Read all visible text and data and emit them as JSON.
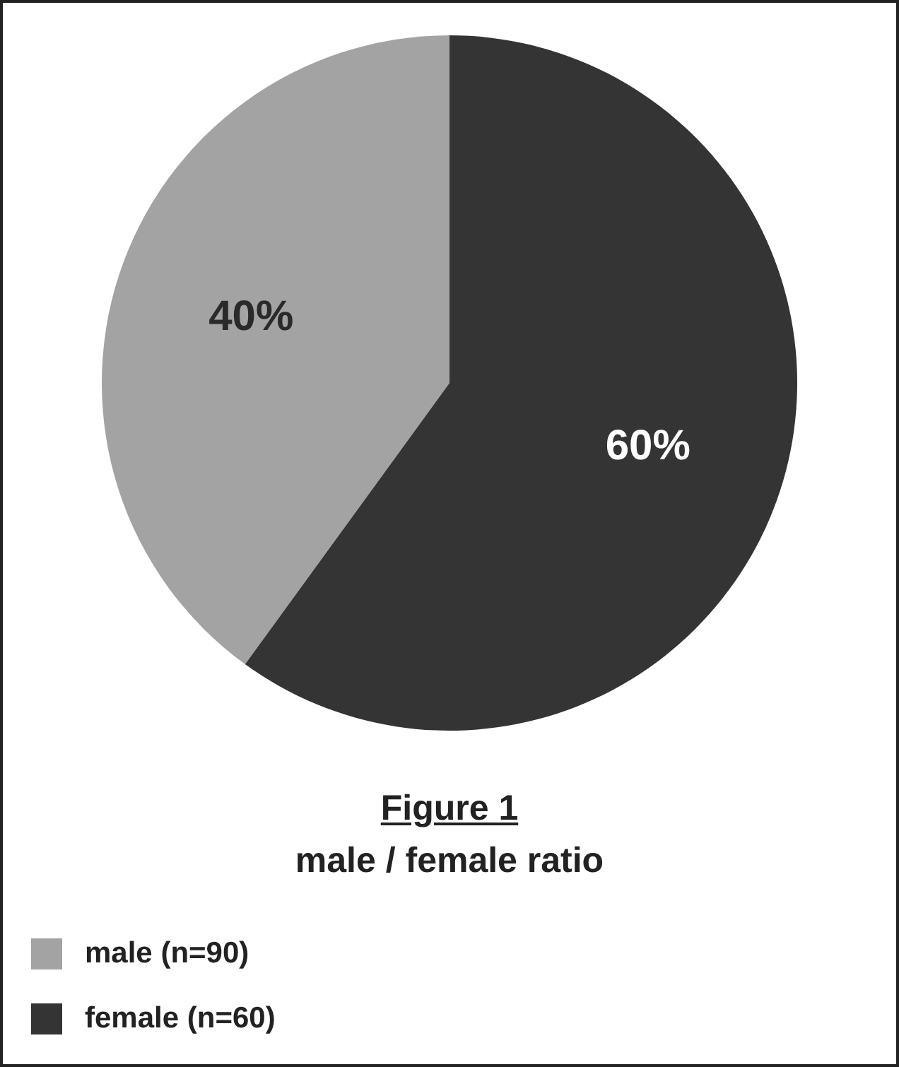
{
  "chart_data": {
    "type": "pie",
    "title": "Figure 1",
    "subtitle": "male / female ratio",
    "categories": [
      "male (n=90)",
      "female (n=60)"
    ],
    "values": [
      40,
      60
    ],
    "colors": [
      "#a3a3a3",
      "#343434"
    ],
    "value_labels": [
      "40%",
      "60%"
    ],
    "legend": "bottom left"
  }
}
